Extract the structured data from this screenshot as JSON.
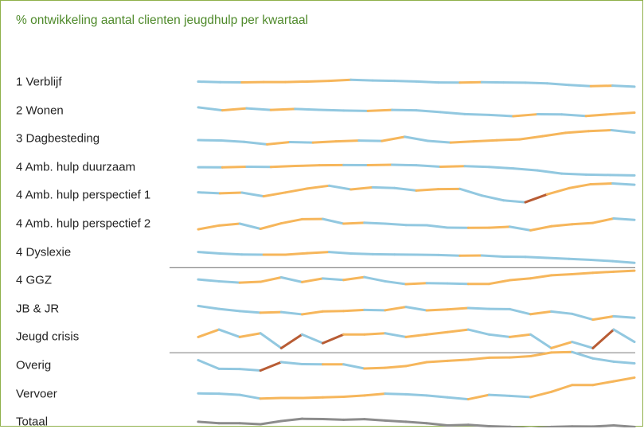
{
  "chart_data": {
    "type": "line",
    "title": "% ontwikkeling aantal clienten jeugdhulp per kwartaal",
    "xlabel": "",
    "ylabel": "",
    "grid": false,
    "legend": "none",
    "colors": {
      "increase": "#f6b65b",
      "decrease": "#92c8e0",
      "strong_increase": "#b85c34",
      "totaal": "#8c8c8c",
      "frame": "#8fb04a",
      "title": "#4f8a2b",
      "separator": "#888888"
    },
    "group_separators_after": [
      "4 Dyslexie",
      "Jeugd crisis"
    ],
    "series": [
      {
        "name": "1 Verblijf",
        "values": [
          0.3,
          -0.2,
          -0.3,
          -0.1,
          -0.05,
          0.35,
          0.85,
          1.8,
          1.2,
          0.9,
          0.4,
          -0.4,
          -0.5,
          -0.2,
          -0.4,
          -0.6,
          -1.1,
          -2.4,
          -3.4,
          -3.0,
          -3.8
        ]
      },
      {
        "name": "2 Wonen",
        "values": [
          2.4,
          0.0,
          1.6,
          0.3,
          1.1,
          0.4,
          -0.2,
          -0.5,
          0.3,
          0.0,
          -1.5,
          -3.1,
          -3.7,
          -4.8,
          -3.2,
          -3.3,
          -4.6,
          -3.2,
          -1.9
        ]
      },
      {
        "name": "3 Dagbesteding",
        "values": [
          -1.2,
          -1.5,
          -2.6,
          -4.6,
          -2.8,
          -3.2,
          -2.2,
          -1.6,
          -1.9,
          1.5,
          -1.8,
          -3.2,
          -2.2,
          -1.3,
          -0.6,
          2.0,
          4.7,
          6.1,
          6.9,
          4.9
        ]
      },
      {
        "name": "4 Amb. hulp duurzaam",
        "values": [
          -0.2,
          -0.3,
          0.2,
          0.0,
          0.8,
          1.4,
          1.6,
          1.5,
          1.8,
          1.4,
          0.2,
          0.7,
          0.0,
          -1.2,
          -2.8,
          -5.4,
          -6.2,
          -6.5,
          -6.8
        ]
      },
      {
        "name": "4 Amb. hulp perspectief 1",
        "values": [
          2.4,
          1.6,
          2.2,
          -0.8,
          2.3,
          5.5,
          7.8,
          4.8,
          6.5,
          5.9,
          3.9,
          5.0,
          5.2,
          -0.2,
          -4.1,
          -5.6,
          0.8,
          5.8,
          9.0,
          9.6,
          8.6
        ]
      },
      {
        "name": "4 Amb. hulp perspectief 2",
        "values": [
          -4.6,
          -1.5,
          0.0,
          -4.2,
          0.3,
          3.6,
          3.8,
          0.0,
          0.7,
          0.0,
          -1.1,
          -1.3,
          -3.2,
          -3.4,
          -3.3,
          -2.5,
          -5.4,
          -2.1,
          -0.5,
          0.6,
          4.2,
          3.1
        ]
      },
      {
        "name": "4 Dyslexie",
        "values": [
          0.0,
          -1.2,
          -2.0,
          -2.2,
          -2.2,
          -1.0,
          0.0,
          -1.2,
          -1.8,
          -2.0,
          -2.2,
          -2.4,
          -3.0,
          -2.8,
          -3.8,
          -4.0,
          -4.8,
          -5.6,
          -6.4,
          -7.4,
          -8.8
        ]
      },
      {
        "name": "4 GGZ",
        "values": [
          0.7,
          -0.8,
          -1.9,
          -1.2,
          2.4,
          -1.4,
          1.5,
          0.3,
          2.6,
          -0.8,
          -3.1,
          -2.3,
          -2.5,
          -2.9,
          -2.9,
          0.1,
          1.6,
          4.1,
          5.0,
          6.1,
          7.0,
          7.8
        ]
      },
      {
        "name": "JB & JR",
        "values": [
          2.2,
          -0.2,
          -2.0,
          -3.3,
          -2.8,
          -4.6,
          -2.2,
          -1.9,
          -1.0,
          -1.3,
          1.4,
          -1.4,
          -0.6,
          0.5,
          -0.2,
          -0.4,
          -4.5,
          -2.3,
          -4.2,
          -8.9,
          -6.2,
          -7.4
        ]
      },
      {
        "name": "Jeugd crisis",
        "values": [
          0.0,
          6.0,
          0.0,
          3.0,
          -9.0,
          2.0,
          -5.0,
          2.0,
          2.0,
          3.0,
          0.0,
          2.0,
          4.0,
          6.0,
          2.0,
          0.0,
          2.0,
          -9.0,
          -4.0,
          -9.0,
          6.0,
          -4.0
        ]
      },
      {
        "name": "Overig",
        "values": [
          4.2,
          -2.8,
          -3.0,
          -4.2,
          2.6,
          1.0,
          0.8,
          0.8,
          -2.6,
          -2.0,
          -0.6,
          2.6,
          3.6,
          4.6,
          6.2,
          6.4,
          7.4,
          10.4,
          10.8,
          5.6,
          3.0,
          1.6
        ]
      },
      {
        "name": "Vervoer",
        "values": [
          0.2,
          0.0,
          -1.0,
          -4.0,
          -3.5,
          -3.5,
          -3.0,
          -2.5,
          -1.5,
          0.0,
          -0.5,
          -1.5,
          -3.0,
          -4.5,
          -1.0,
          -1.8,
          -2.8,
          1.5,
          7.0,
          7.0,
          10.0,
          13.0
        ]
      },
      {
        "name": "Totaal",
        "values": [
          0.2,
          -1.0,
          -1.0,
          -1.8,
          0.8,
          2.6,
          2.4,
          1.8,
          2.3,
          1.2,
          0.2,
          -1.0,
          -2.8,
          -2.3,
          -3.4,
          -3.9,
          -5.2,
          -4.0,
          -3.6,
          -3.7,
          -2.8,
          -4.0
        ]
      }
    ]
  }
}
